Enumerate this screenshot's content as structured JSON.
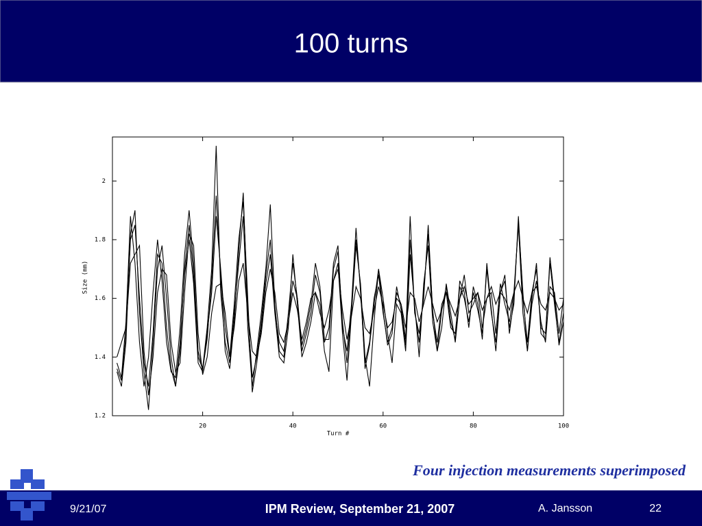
{
  "slide": {
    "title": "100 turns",
    "caption": "Four injection measurements superimposed",
    "footer": {
      "date": "9/21/07",
      "event": "IPM Review, September 21, 2007",
      "author": "A. Jansson",
      "page": "22"
    }
  },
  "chart_data": {
    "type": "line",
    "xlabel": "Turn #",
    "ylabel": "Size (mm)",
    "xlim": [
      0,
      100
    ],
    "ylim": [
      1.2,
      2.15
    ],
    "xticks": [
      20,
      40,
      60,
      80,
      100
    ],
    "yticks": [
      1.2,
      1.4,
      1.6,
      1.8,
      2
    ],
    "x": [
      1,
      2,
      3,
      4,
      5,
      6,
      7,
      8,
      9,
      10,
      11,
      12,
      13,
      14,
      15,
      16,
      17,
      18,
      19,
      20,
      21,
      22,
      23,
      24,
      25,
      26,
      27,
      28,
      29,
      30,
      31,
      32,
      33,
      34,
      35,
      36,
      37,
      38,
      39,
      40,
      41,
      42,
      43,
      44,
      45,
      46,
      47,
      48,
      49,
      50,
      51,
      52,
      53,
      54,
      55,
      56,
      57,
      58,
      59,
      60,
      61,
      62,
      63,
      64,
      65,
      66,
      67,
      68,
      69,
      70,
      71,
      72,
      73,
      74,
      75,
      76,
      77,
      78,
      79,
      80,
      81,
      82,
      83,
      84,
      85,
      86,
      87,
      88,
      89,
      90,
      91,
      92,
      93,
      94,
      95,
      96,
      97,
      98,
      99,
      100
    ],
    "series": [
      {
        "color": "#000000",
        "values": [
          1.38,
          1.33,
          1.52,
          1.88,
          1.72,
          1.45,
          1.3,
          1.4,
          1.62,
          1.8,
          1.66,
          1.45,
          1.35,
          1.33,
          1.5,
          1.75,
          1.9,
          1.72,
          1.42,
          1.36,
          1.5,
          1.7,
          2.12,
          1.62,
          1.45,
          1.38,
          1.55,
          1.72,
          1.88,
          1.5,
          1.3,
          1.42,
          1.55,
          1.7,
          1.92,
          1.58,
          1.42,
          1.4,
          1.55,
          1.72,
          1.6,
          1.42,
          1.48,
          1.55,
          1.68,
          1.62,
          1.45,
          1.5,
          1.72,
          1.78,
          1.5,
          1.42,
          1.58,
          1.84,
          1.62,
          1.38,
          1.45,
          1.6,
          1.68,
          1.55,
          1.45,
          1.5,
          1.62,
          1.58,
          1.46,
          1.88,
          1.55,
          1.48,
          1.6,
          1.85,
          1.55,
          1.45,
          1.58,
          1.62,
          1.5,
          1.48,
          1.64,
          1.6,
          1.52,
          1.62,
          1.56,
          1.48,
          1.7,
          1.55,
          1.45,
          1.62,
          1.66,
          1.5,
          1.58,
          1.88,
          1.6,
          1.45,
          1.62,
          1.7,
          1.5,
          1.48,
          1.72,
          1.58,
          1.45,
          1.55
        ]
      },
      {
        "color": "#000000",
        "values": [
          1.35,
          1.3,
          1.45,
          1.82,
          1.9,
          1.55,
          1.35,
          1.22,
          1.45,
          1.7,
          1.78,
          1.6,
          1.4,
          1.3,
          1.45,
          1.68,
          1.8,
          1.65,
          1.38,
          1.35,
          1.48,
          1.62,
          1.88,
          1.7,
          1.5,
          1.4,
          1.58,
          1.8,
          1.93,
          1.6,
          1.28,
          1.38,
          1.5,
          1.65,
          1.75,
          1.55,
          1.4,
          1.38,
          1.5,
          1.75,
          1.58,
          1.4,
          1.45,
          1.52,
          1.62,
          1.58,
          1.42,
          1.35,
          1.66,
          1.72,
          1.48,
          1.32,
          1.55,
          1.78,
          1.65,
          1.4,
          1.3,
          1.52,
          1.7,
          1.6,
          1.48,
          1.38,
          1.58,
          1.55,
          1.42,
          1.75,
          1.58,
          1.4,
          1.65,
          1.78,
          1.52,
          1.42,
          1.5,
          1.65,
          1.55,
          1.45,
          1.6,
          1.68,
          1.55,
          1.58,
          1.62,
          1.5,
          1.6,
          1.62,
          1.48,
          1.65,
          1.58,
          1.52,
          1.62,
          1.85,
          1.55,
          1.42,
          1.58,
          1.66,
          1.52,
          1.45,
          1.64,
          1.62,
          1.48,
          1.6
        ]
      },
      {
        "color": "#000000",
        "values": [
          1.4,
          1.45,
          1.5,
          1.72,
          1.75,
          1.78,
          1.42,
          1.27,
          1.4,
          1.62,
          1.7,
          1.68,
          1.45,
          1.35,
          1.38,
          1.62,
          1.82,
          1.78,
          1.48,
          1.34,
          1.4,
          1.55,
          1.64,
          1.65,
          1.55,
          1.4,
          1.5,
          1.66,
          1.72,
          1.55,
          1.42,
          1.4,
          1.48,
          1.62,
          1.7,
          1.62,
          1.48,
          1.45,
          1.52,
          1.62,
          1.56,
          1.46,
          1.52,
          1.6,
          1.62,
          1.55,
          1.5,
          1.56,
          1.66,
          1.7,
          1.56,
          1.46,
          1.54,
          1.64,
          1.6,
          1.5,
          1.48,
          1.56,
          1.64,
          1.58,
          1.5,
          1.52,
          1.6,
          1.58,
          1.5,
          1.62,
          1.6,
          1.52,
          1.58,
          1.64,
          1.58,
          1.52,
          1.56,
          1.62,
          1.58,
          1.54,
          1.6,
          1.64,
          1.58,
          1.6,
          1.62,
          1.56,
          1.6,
          1.64,
          1.58,
          1.62,
          1.6,
          1.56,
          1.62,
          1.66,
          1.6,
          1.55,
          1.62,
          1.64,
          1.58,
          1.56,
          1.62,
          1.6,
          1.56,
          1.58
        ]
      },
      {
        "color": "#000000",
        "values": [
          1.36,
          1.32,
          1.48,
          1.8,
          1.85,
          1.6,
          1.38,
          1.3,
          1.48,
          1.75,
          1.72,
          1.5,
          1.36,
          1.3,
          1.42,
          1.7,
          1.85,
          1.68,
          1.4,
          1.36,
          1.46,
          1.66,
          1.95,
          1.68,
          1.42,
          1.36,
          1.52,
          1.76,
          1.96,
          1.55,
          1.33,
          1.4,
          1.52,
          1.68,
          1.8,
          1.56,
          1.45,
          1.42,
          1.52,
          1.66,
          1.6,
          1.44,
          1.5,
          1.58,
          1.72,
          1.64,
          1.46,
          1.46,
          1.7,
          1.76,
          1.52,
          1.38,
          1.56,
          1.8,
          1.64,
          1.36,
          1.44,
          1.58,
          1.7,
          1.56,
          1.44,
          1.48,
          1.64,
          1.56,
          1.44,
          1.8,
          1.56,
          1.45,
          1.62,
          1.82,
          1.56,
          1.42,
          1.56,
          1.64,
          1.52,
          1.46,
          1.66,
          1.62,
          1.5,
          1.64,
          1.58,
          1.46,
          1.72,
          1.56,
          1.42,
          1.62,
          1.68,
          1.48,
          1.6,
          1.86,
          1.62,
          1.42,
          1.6,
          1.72,
          1.48,
          1.46,
          1.74,
          1.6,
          1.44,
          1.52
        ]
      }
    ]
  }
}
